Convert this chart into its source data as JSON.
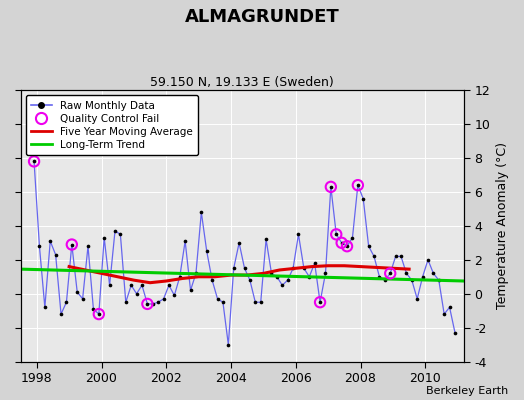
{
  "title": "ALMAGRUNDET",
  "subtitle": "59.150 N, 19.133 E (Sweden)",
  "ylabel": "Temperature Anomaly (°C)",
  "credit": "Berkeley Earth",
  "ylim": [
    -4,
    12
  ],
  "yticks": [
    -4,
    -2,
    0,
    2,
    4,
    6,
    8,
    10,
    12
  ],
  "xlim": [
    1997.5,
    2011.2
  ],
  "xticks": [
    1998,
    2000,
    2002,
    2004,
    2006,
    2008,
    2010
  ],
  "bg_color": "#e8e8e8",
  "fig_bg_color": "#d4d4d4",
  "raw_x": [
    1997.917,
    1998.083,
    1998.25,
    1998.417,
    1998.583,
    1998.75,
    1998.917,
    1999.083,
    1999.25,
    1999.417,
    1999.583,
    1999.75,
    1999.917,
    2000.083,
    2000.25,
    2000.417,
    2000.583,
    2000.75,
    2000.917,
    2001.083,
    2001.25,
    2001.417,
    2001.583,
    2001.75,
    2001.917,
    2002.083,
    2002.25,
    2002.417,
    2002.583,
    2002.75,
    2002.917,
    2003.083,
    2003.25,
    2003.417,
    2003.583,
    2003.75,
    2003.917,
    2004.083,
    2004.25,
    2004.417,
    2004.583,
    2004.75,
    2004.917,
    2005.083,
    2005.25,
    2005.417,
    2005.583,
    2005.75,
    2005.917,
    2006.083,
    2006.25,
    2006.417,
    2006.583,
    2006.75,
    2006.917,
    2007.083,
    2007.25,
    2007.417,
    2007.583,
    2007.75,
    2007.917,
    2008.083,
    2008.25,
    2008.417,
    2008.583,
    2008.75,
    2008.917,
    2009.083,
    2009.25,
    2009.417,
    2009.583,
    2009.75,
    2009.917,
    2010.083,
    2010.25,
    2010.417,
    2010.583,
    2010.75,
    2010.917
  ],
  "raw_y": [
    7.8,
    2.8,
    -0.8,
    3.1,
    2.3,
    -1.2,
    -0.5,
    2.9,
    0.1,
    -0.3,
    2.8,
    -0.9,
    -1.2,
    3.3,
    0.5,
    3.7,
    3.5,
    -0.5,
    0.5,
    0.0,
    0.5,
    -0.6,
    -0.6,
    -0.5,
    -0.3,
    0.5,
    -0.1,
    1.0,
    3.1,
    0.2,
    1.2,
    4.8,
    2.5,
    0.8,
    -0.3,
    -0.5,
    -3.0,
    1.5,
    3.0,
    1.5,
    0.8,
    -0.5,
    -0.5,
    3.2,
    1.2,
    1.0,
    0.5,
    0.8,
    1.5,
    3.5,
    1.5,
    1.0,
    1.8,
    -0.5,
    1.2,
    6.3,
    3.5,
    3.0,
    2.8,
    3.3,
    6.4,
    5.6,
    2.8,
    2.2,
    1.0,
    0.8,
    1.2,
    2.2,
    2.2,
    1.2,
    0.8,
    -0.3,
    1.0,
    2.0,
    1.2,
    0.8,
    -1.2,
    -0.8,
    -2.3
  ],
  "qc_fail_x": [
    1997.917,
    1999.083,
    1999.917,
    2001.417,
    2006.75,
    2007.083,
    2007.25,
    2007.417,
    2007.583,
    2007.917,
    2008.917
  ],
  "qc_fail_y": [
    7.8,
    2.9,
    -1.2,
    -0.6,
    -0.5,
    6.3,
    3.5,
    3.0,
    2.8,
    6.4,
    1.2
  ],
  "ma_x": [
    1999.0,
    1999.5,
    2000.0,
    2000.5,
    2001.0,
    2001.5,
    2002.0,
    2002.5,
    2003.0,
    2003.5,
    2004.0,
    2004.5,
    2005.0,
    2005.5,
    2006.0,
    2006.5,
    2007.0,
    2007.5,
    2008.0,
    2008.5,
    2009.0,
    2009.5
  ],
  "ma_y": [
    1.6,
    1.4,
    1.2,
    1.0,
    0.8,
    0.65,
    0.75,
    0.9,
    1.0,
    1.0,
    1.1,
    1.1,
    1.2,
    1.4,
    1.5,
    1.6,
    1.65,
    1.65,
    1.6,
    1.55,
    1.5,
    1.45
  ],
  "trend_x": [
    1997.5,
    2011.2
  ],
  "trend_y": [
    1.45,
    0.75
  ],
  "raw_line_color": "#6666ee",
  "raw_dot_color": "#000000",
  "qc_color": "#ee00ee",
  "ma_color": "#dd0000",
  "trend_color": "#00cc00",
  "grid_color": "#ffffff"
}
